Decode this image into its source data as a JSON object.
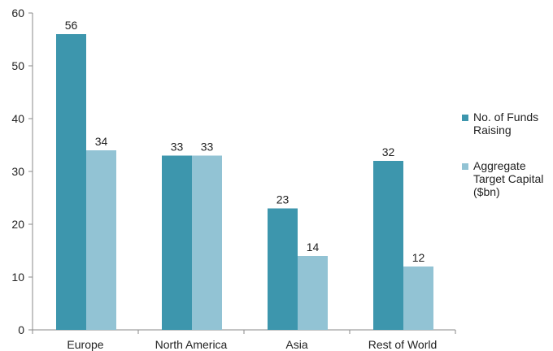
{
  "chart_data": {
    "type": "bar",
    "categories": [
      "Europe",
      "North America",
      "Asia",
      "Rest of World"
    ],
    "series": [
      {
        "name": "No. of Funds Raising",
        "color": "#3d96ad",
        "values": [
          56,
          33,
          23,
          32
        ]
      },
      {
        "name": "Aggregate Target Capital ($bn)",
        "color": "#92c3d4",
        "values": [
          34,
          33,
          14,
          12
        ]
      }
    ],
    "ylim": [
      0,
      60
    ],
    "yticks": [
      0,
      10,
      20,
      30,
      40,
      50,
      60
    ],
    "grid": false,
    "legend_position": "right",
    "data_labels": true
  }
}
